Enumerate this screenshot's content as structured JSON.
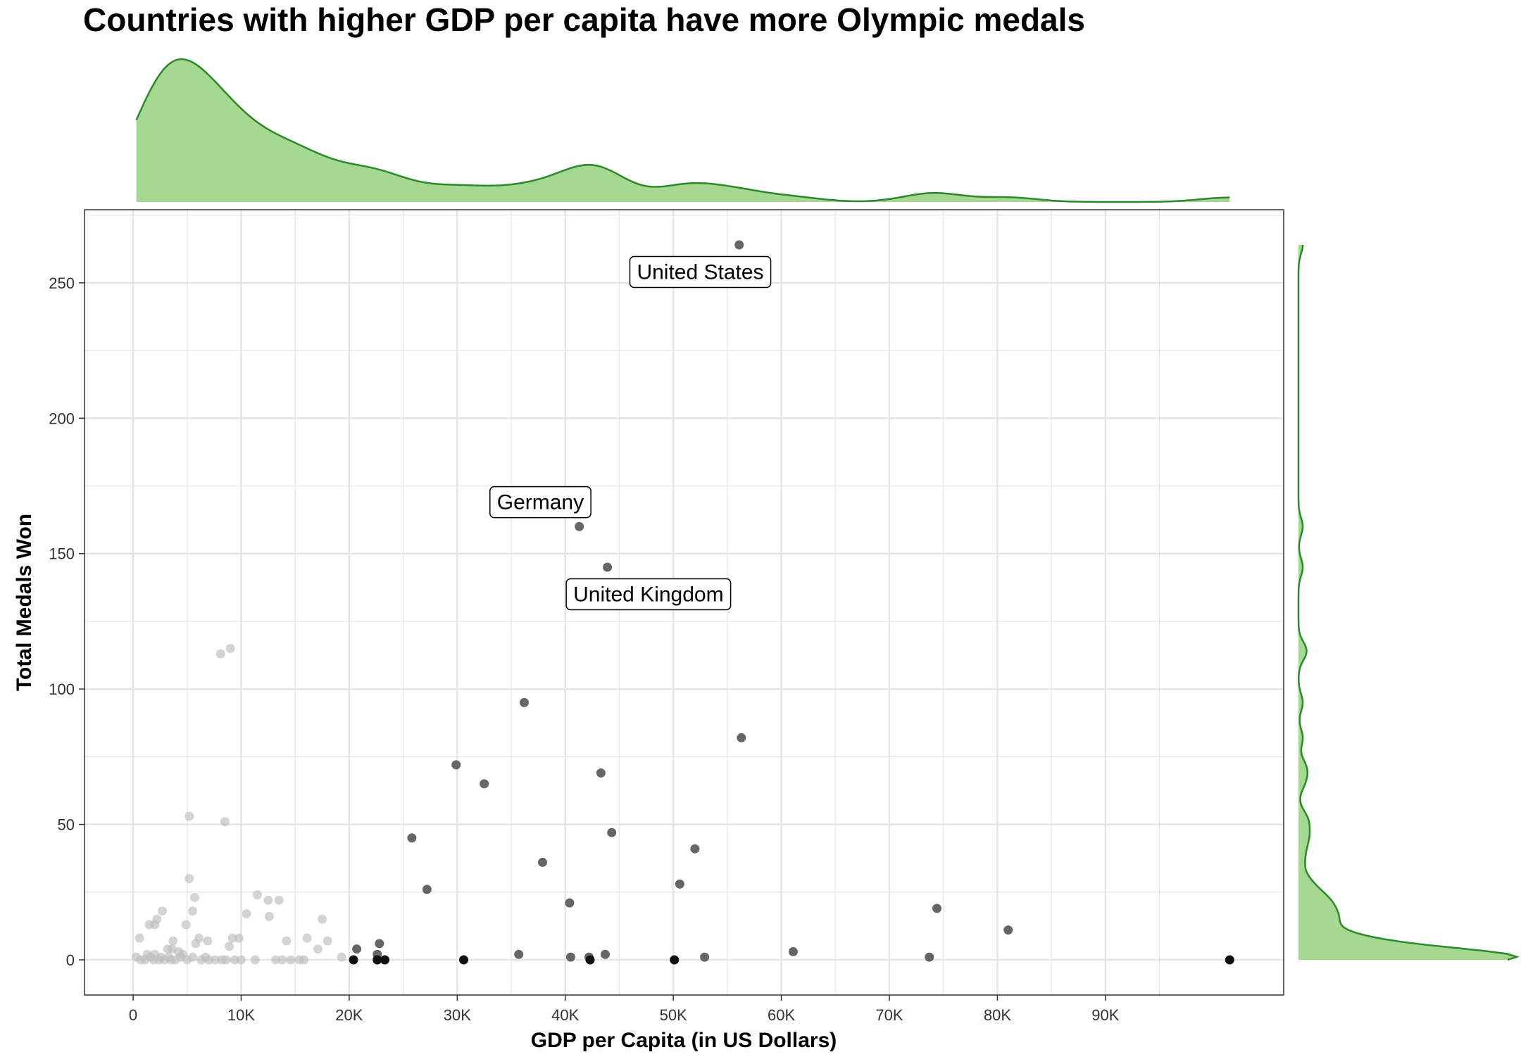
{
  "chart_data": {
    "type": "scatter",
    "title": "Countries with higher GDP per capita have more Olympic medals",
    "xlabel": "GDP per Capita (in US Dollars)",
    "ylabel": "Total Medals Won",
    "xlim": [
      -4500,
      106500
    ],
    "ylim": [
      -13,
      277
    ],
    "xticks": [
      0,
      10000,
      20000,
      30000,
      40000,
      50000,
      60000,
      70000,
      80000,
      90000
    ],
    "xtick_labels": [
      "0",
      "10K",
      "20K",
      "30K",
      "40K",
      "50K",
      "60K",
      "70K",
      "80K",
      "90K"
    ],
    "yticks": [
      0,
      50,
      100,
      150,
      200,
      250
    ],
    "ytick_labels": [
      "0",
      "50",
      "100",
      "150",
      "200",
      "250"
    ],
    "grid": true,
    "marginal": "density",
    "colors": {
      "density_fill": "#a5d890",
      "density_line": "#2a8a2a",
      "point_low_gdp": "#bdbdbd",
      "point_high_gdp": "#555555",
      "point_zero_high_gdp": "#111111",
      "grid": "#e5e5e5",
      "panel_border": "#333333"
    },
    "annotations": [
      {
        "label": "United States",
        "x": 52500,
        "y": 254
      },
      {
        "label": "Germany",
        "x": 37700,
        "y": 169
      },
      {
        "label": "United Kingdom",
        "x": 47700,
        "y": 135
      }
    ],
    "points": [
      [
        56100,
        264
      ],
      [
        41300,
        160
      ],
      [
        43900,
        145
      ],
      [
        36200,
        95
      ],
      [
        56300,
        82
      ],
      [
        29900,
        72
      ],
      [
        43300,
        69
      ],
      [
        32500,
        65
      ],
      [
        44300,
        47
      ],
      [
        25800,
        45
      ],
      [
        52000,
        41
      ],
      [
        37900,
        36
      ],
      [
        50600,
        28
      ],
      [
        27200,
        26
      ],
      [
        40400,
        21
      ],
      [
        74400,
        19
      ],
      [
        81000,
        11
      ],
      [
        61100,
        3
      ],
      [
        35700,
        2
      ],
      [
        43700,
        2
      ],
      [
        40500,
        1
      ],
      [
        42200,
        1
      ],
      [
        52900,
        1
      ],
      [
        73700,
        1
      ],
      [
        20700,
        4
      ],
      [
        22800,
        6
      ],
      [
        22600,
        2
      ],
      [
        42300,
        0
      ],
      [
        20400,
        0
      ],
      [
        22600,
        0
      ],
      [
        23300,
        0
      ],
      [
        30600,
        0
      ],
      [
        50100,
        0
      ],
      [
        101500,
        0
      ],
      [
        9000,
        115
      ],
      [
        8100,
        113
      ],
      [
        5200,
        53
      ],
      [
        8500,
        51
      ],
      [
        5200,
        30
      ],
      [
        11500,
        24
      ],
      [
        5700,
        23
      ],
      [
        12500,
        22
      ],
      [
        13500,
        22
      ],
      [
        2700,
        18
      ],
      [
        5500,
        18
      ],
      [
        10500,
        17
      ],
      [
        12600,
        16
      ],
      [
        2200,
        15
      ],
      [
        17500,
        15
      ],
      [
        1500,
        13
      ],
      [
        2000,
        13
      ],
      [
        4900,
        13
      ],
      [
        6100,
        8
      ],
      [
        9200,
        8
      ],
      [
        9800,
        8
      ],
      [
        16100,
        8
      ],
      [
        600,
        8
      ],
      [
        3700,
        7
      ],
      [
        6900,
        7
      ],
      [
        14200,
        7
      ],
      [
        18000,
        7
      ],
      [
        5800,
        6
      ],
      [
        8900,
        5
      ],
      [
        3200,
        4
      ],
      [
        17100,
        4
      ],
      [
        3600,
        4
      ],
      [
        1300,
        2
      ],
      [
        2000,
        2
      ],
      [
        4200,
        3
      ],
      [
        4600,
        2
      ],
      [
        19300,
        1
      ],
      [
        300,
        1
      ],
      [
        700,
        0
      ],
      [
        1100,
        0
      ],
      [
        1600,
        1
      ],
      [
        2400,
        0
      ],
      [
        2900,
        0
      ],
      [
        3300,
        1
      ],
      [
        3900,
        0
      ],
      [
        4400,
        1
      ],
      [
        5000,
        0
      ],
      [
        6300,
        0
      ],
      [
        7000,
        0
      ],
      [
        7600,
        0
      ],
      [
        8200,
        0
      ],
      [
        9400,
        0
      ],
      [
        10000,
        0
      ],
      [
        11300,
        0
      ],
      [
        13200,
        0
      ],
      [
        13800,
        0
      ],
      [
        14600,
        0
      ],
      [
        15400,
        0
      ],
      [
        15800,
        0
      ],
      [
        6700,
        1
      ],
      [
        2600,
        1
      ],
      [
        1900,
        0
      ],
      [
        3500,
        0
      ],
      [
        5500,
        1
      ],
      [
        8600,
        0
      ]
    ]
  }
}
